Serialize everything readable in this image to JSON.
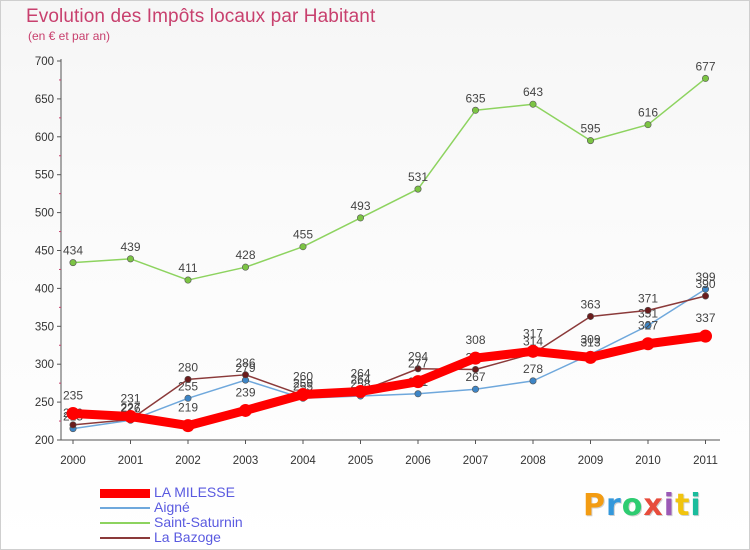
{
  "header": {
    "title": "Evolution des Impôts locaux par Habitant",
    "subtitle": "(en € et par an)"
  },
  "brand": {
    "text": "Proxiti",
    "letter_colors": [
      "#f39c12",
      "#3498db",
      "#2ecc71",
      "#e74c3c",
      "#9b59b6",
      "#f1c40f",
      "#1abc9c"
    ]
  },
  "chart_data": {
    "type": "line",
    "title": "Evolution des Impôts locaux par Habitant",
    "subtitle": "(en € et par an)",
    "x": [
      "2000",
      "2001",
      "2002",
      "2003",
      "2004",
      "2005",
      "2006",
      "2007",
      "2008",
      "2009",
      "2010",
      "2011"
    ],
    "ylim": [
      200,
      700
    ],
    "yticks": [
      200,
      250,
      300,
      350,
      400,
      450,
      500,
      550,
      600,
      650,
      700
    ],
    "legend_position": "bottom-left",
    "series": [
      {
        "name": "Saint-Saturnin",
        "color": "#8dd35f",
        "marker": "#7cc444",
        "width": 1.5,
        "values": [
          434,
          439,
          411,
          428,
          455,
          493,
          531,
          635,
          643,
          595,
          616,
          677
        ]
      },
      {
        "name": "Aigné",
        "color": "#6fa8dc",
        "marker": "#3d85c6",
        "width": 1.5,
        "values": [
          215,
          226,
          255,
          279,
          255,
          258,
          261,
          267,
          278,
          313,
          351,
          399
        ]
      },
      {
        "name": "La Bazoge",
        "color": "#8b3a3a",
        "marker": "#6b1c1c",
        "width": 1.5,
        "values": [
          220,
          227,
          280,
          286,
          259,
          264,
          294,
          293,
          314,
          363,
          371,
          390
        ]
      },
      {
        "name": "LA MILESSE",
        "color": "#ff0000",
        "marker": "#ff0000",
        "width": 9,
        "values": [
          235,
          231,
          219,
          239,
          260,
          264,
          277,
          308,
          317,
          309,
          327,
          337
        ]
      }
    ]
  }
}
